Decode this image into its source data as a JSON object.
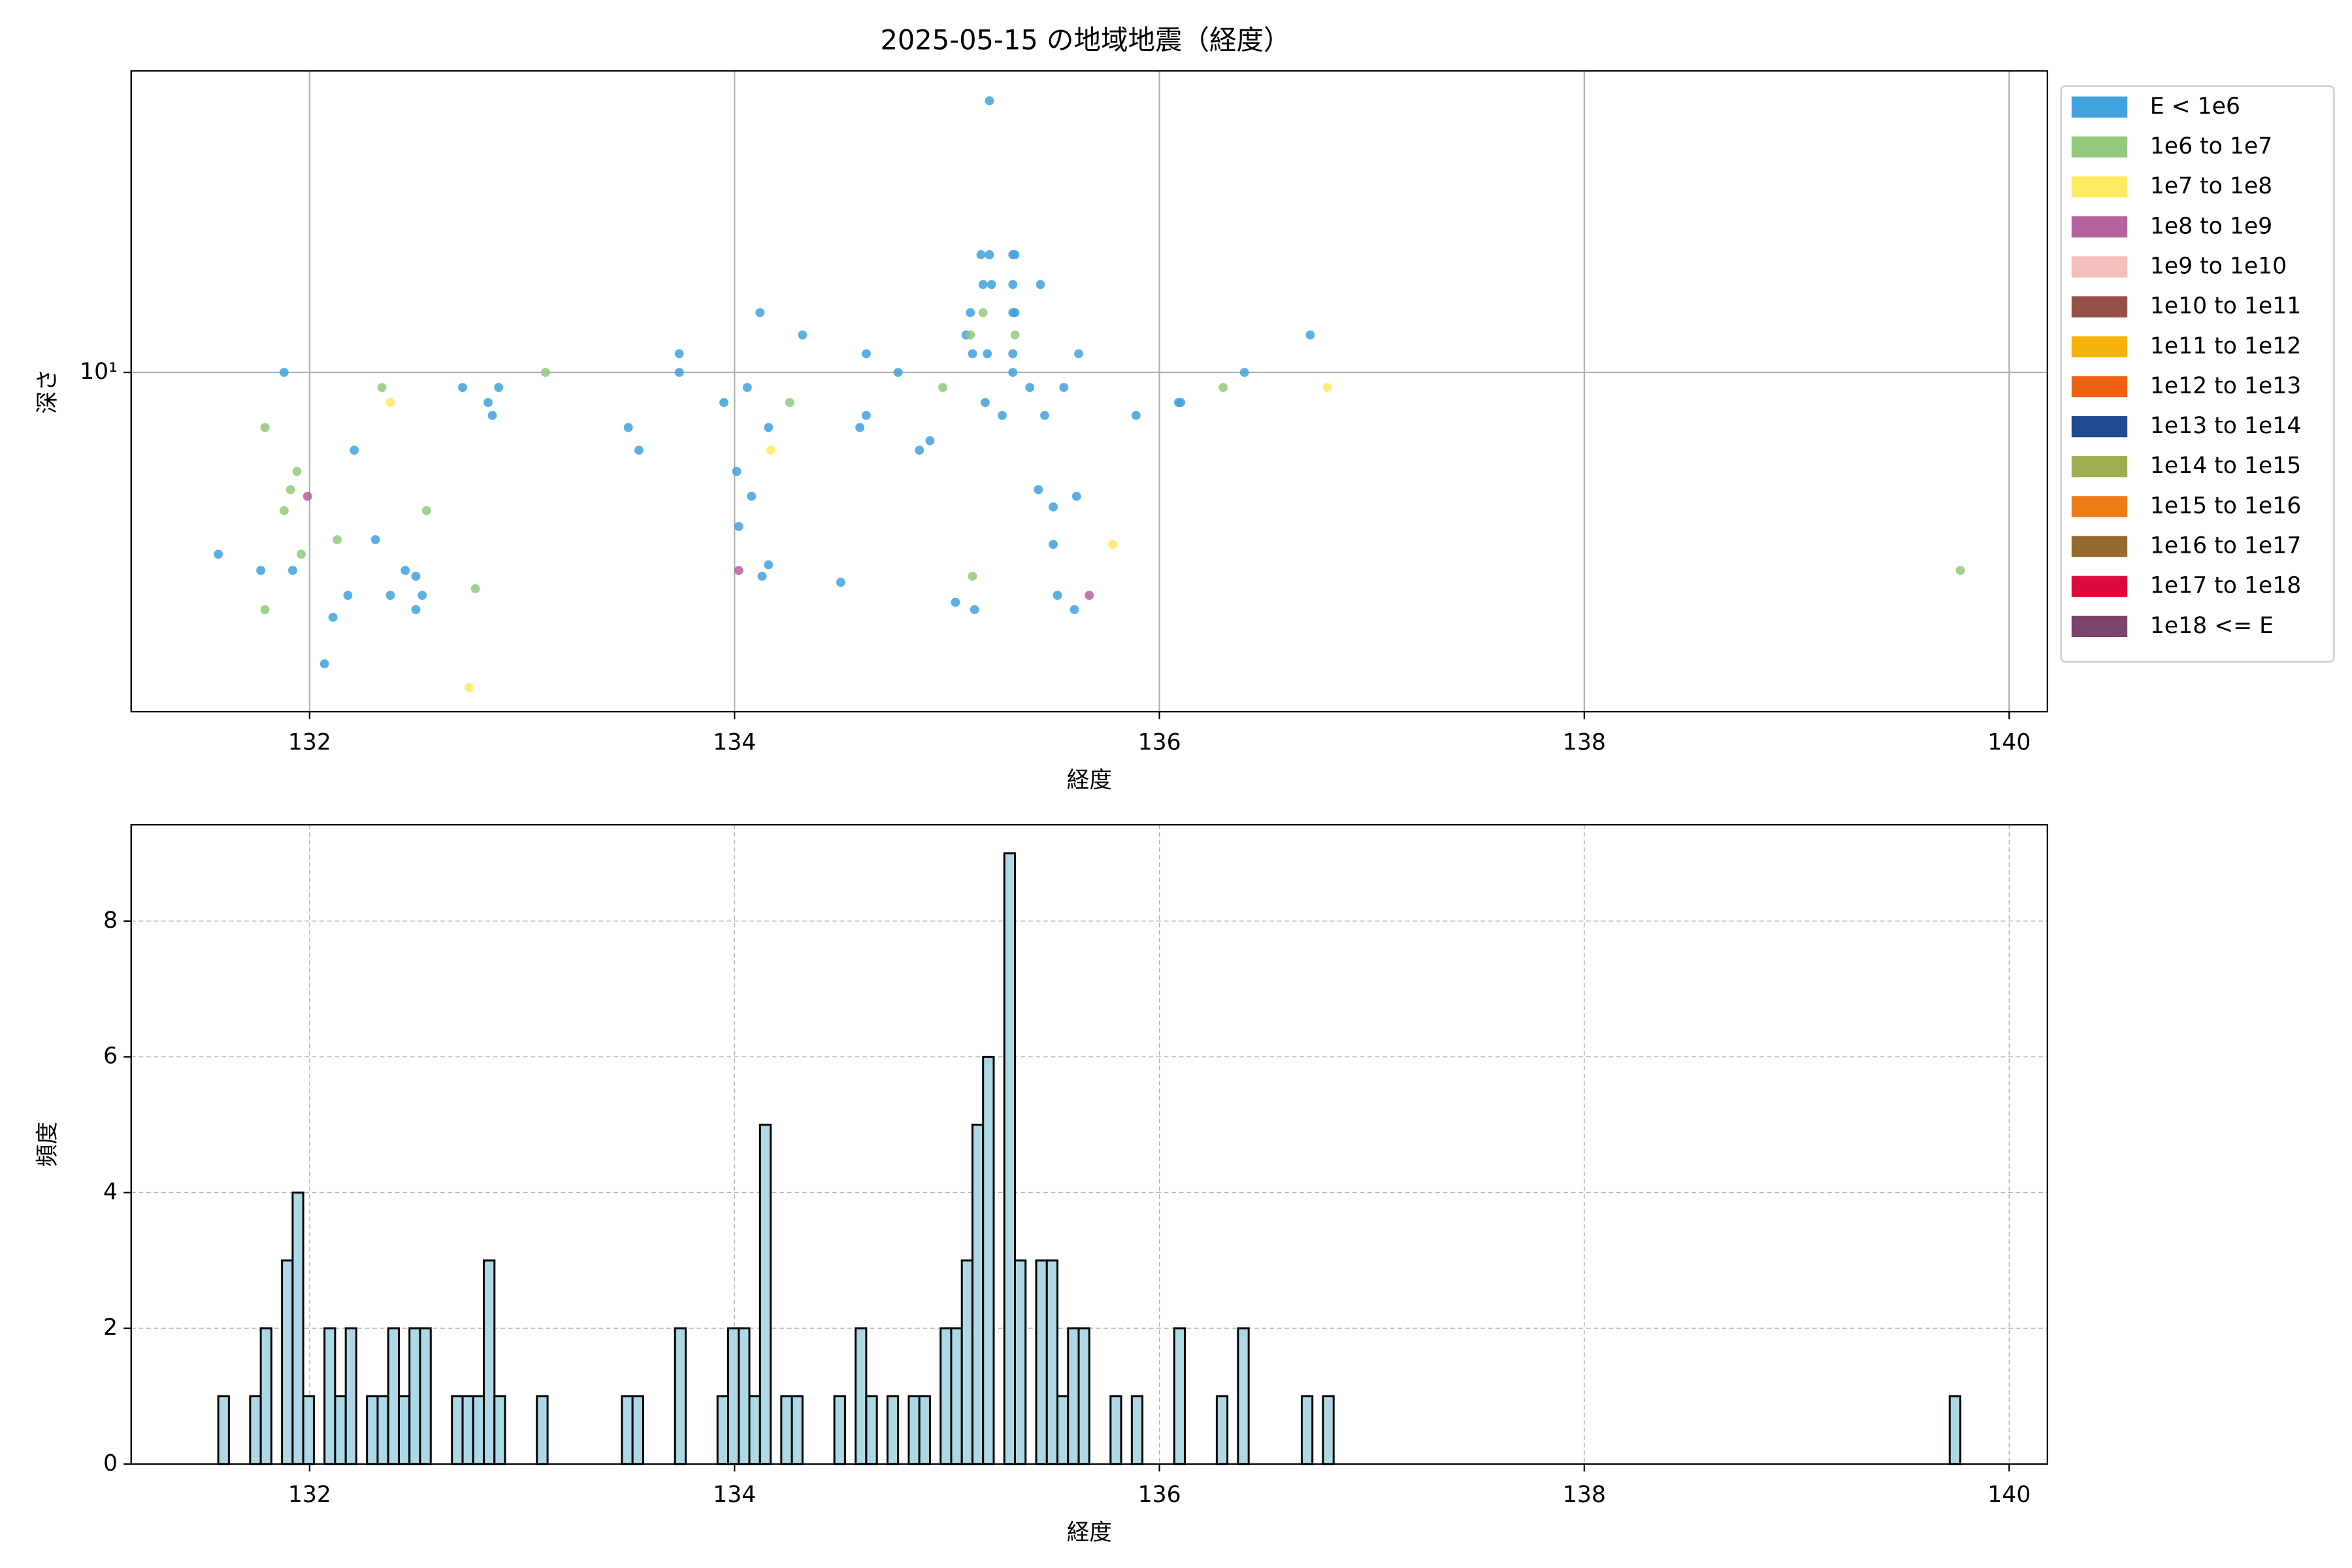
{
  "chart_data": [
    {
      "type": "scatter",
      "title": "2025-05-15 の地域地震（経度）",
      "x_label": "経度",
      "y_label": "深さ",
      "xlim": [
        131.16,
        140.18
      ],
      "xticks": [
        132,
        134,
        136,
        138,
        140
      ],
      "ylim": [
        0.93,
        82.6
      ],
      "yticks": [
        {
          "value": 10,
          "label": "10¹"
        }
      ],
      "y_log": true,
      "grid": true,
      "legend_position": "outside right",
      "series": [
        {
          "name": "E < 1e6",
          "color": "#3fa2dc",
          "x": [
            131.57,
            131.77,
            131.88,
            131.92,
            132.07,
            132.11,
            132.18,
            132.21,
            132.31,
            132.38,
            132.45,
            132.5,
            132.5,
            132.53,
            132.72,
            132.84,
            132.86,
            132.89,
            133.5,
            133.55,
            133.74,
            133.74,
            133.95,
            134.01,
            134.02,
            134.06,
            134.08,
            134.12,
            134.13,
            134.16,
            134.16,
            134.32,
            134.5,
            134.59,
            134.62,
            134.62,
            134.77,
            134.87,
            134.92,
            135.04,
            135.09,
            135.11,
            135.12,
            135.13,
            135.16,
            135.17,
            135.18,
            135.19,
            135.2,
            135.2,
            135.21,
            135.26,
            135.31,
            135.31,
            135.31,
            135.31,
            135.31,
            135.32,
            135.32,
            135.39,
            135.43,
            135.44,
            135.46,
            135.5,
            135.5,
            135.52,
            135.55,
            135.6,
            135.61,
            135.62,
            135.89,
            136.09,
            136.1,
            136.4,
            136.71
          ],
          "values": [
            2.8,
            2.5,
            10,
            2.5,
            1.3,
            1.8,
            2.1,
            5.8,
            3.1,
            2.1,
            2.5,
            2.4,
            1.9,
            2.1,
            9,
            8.1,
            7.4,
            9,
            6.8,
            5.8,
            11.4,
            10,
            8.1,
            5,
            3.4,
            9,
            4.2,
            15.2,
            2.4,
            6.8,
            2.6,
            13,
            2.3,
            6.8,
            7.4,
            11.4,
            10,
            5.8,
            6.2,
            2,
            13,
            15.2,
            11.4,
            1.9,
            22.8,
            18.5,
            8.1,
            11.4,
            22.8,
            67,
            18.5,
            7.4,
            22.8,
            18.5,
            15.2,
            11.4,
            10,
            22.8,
            15.2,
            9,
            4.4,
            18.5,
            7.4,
            3.9,
            3,
            2.1,
            9,
            1.9,
            4.2,
            11.4,
            7.4,
            8.1,
            8.1,
            10,
            13
          ]
        },
        {
          "name": "1e6 to 1e7",
          "color": "#92c97a",
          "x": [
            131.79,
            131.79,
            131.88,
            131.91,
            131.94,
            131.96,
            132.13,
            132.34,
            132.55,
            132.78,
            133.11,
            134.26,
            134.98,
            135.11,
            135.12,
            135.17,
            135.32,
            136.3,
            139.77
          ],
          "values": [
            6.8,
            1.9,
            3.8,
            4.4,
            5,
            2.8,
            3.1,
            9,
            3.8,
            2.2,
            10,
            8.1,
            9,
            13,
            2.4,
            15.2,
            13,
            9,
            2.5
          ]
        },
        {
          "name": "1e7 to 1e8",
          "color": "#fdeb5f",
          "x": [
            132.38,
            132.75,
            134.17,
            135.78,
            136.79
          ],
          "values": [
            8.1,
            1.1,
            5.8,
            3,
            9
          ]
        },
        {
          "name": "1e8 to 1e9",
          "color": "#b5629f",
          "x": [
            131.99,
            134.02,
            135.67
          ],
          "values": [
            4.2,
            2.5,
            2.1
          ]
        },
        {
          "name": "1e9 to 1e10",
          "color": "#f4bfba",
          "x": [],
          "values": []
        },
        {
          "name": "1e10 to 1e11",
          "color": "#955048",
          "x": [],
          "values": []
        },
        {
          "name": "1e11 to 1e12",
          "color": "#f4b30b",
          "x": [],
          "values": []
        },
        {
          "name": "1e12 to 1e13",
          "color": "#ee6313",
          "x": [],
          "values": []
        },
        {
          "name": "1e13 to 1e14",
          "color": "#1f4b91",
          "x": [],
          "values": []
        },
        {
          "name": "1e14 to 1e15",
          "color": "#9ead4f",
          "x": [],
          "values": []
        },
        {
          "name": "1e15 to 1e16",
          "color": "#ed7d18",
          "x": [],
          "values": []
        },
        {
          "name": "1e16 to 1e17",
          "color": "#946a2d",
          "x": [],
          "values": []
        },
        {
          "name": "1e17 to 1e18",
          "color": "#dc0b3c",
          "x": [],
          "values": []
        },
        {
          "name": "1e18 <= E",
          "color": "#7a446c",
          "x": [],
          "values": []
        }
      ]
    },
    {
      "type": "histogram",
      "x_label": "経度",
      "y_label": "頻度",
      "color": "#add8e6",
      "edge_color": "#000000",
      "xlim": [
        131.16,
        140.18
      ],
      "xticks": [
        132,
        134,
        136,
        138,
        140
      ],
      "ylim": [
        0,
        9.42
      ],
      "yticks": [
        0,
        2,
        4,
        6,
        8
      ],
      "grid": true,
      "bins": [
        131.57,
        131.62,
        131.67,
        131.72,
        131.77,
        131.82,
        131.87,
        131.92,
        131.97,
        132.02,
        132.07,
        132.12,
        132.17,
        132.22,
        132.27,
        132.32,
        132.37,
        132.42,
        132.47,
        132.52,
        132.57,
        132.62,
        132.67,
        132.72,
        132.77,
        132.82,
        132.87,
        132.92,
        132.97,
        133.02,
        133.07,
        133.12,
        133.17,
        133.22,
        133.27,
        133.32,
        133.37,
        133.42,
        133.47,
        133.52,
        133.57,
        133.62,
        133.67,
        133.72,
        133.77,
        133.82,
        133.87,
        133.92,
        133.97,
        134.02,
        134.07,
        134.12,
        134.17,
        134.22,
        134.27,
        134.32,
        134.37,
        134.42,
        134.47,
        134.52,
        134.57,
        134.62,
        134.67,
        134.72,
        134.77,
        134.82,
        134.87,
        134.92,
        134.97,
        135.02,
        135.07,
        135.12,
        135.17,
        135.22,
        135.27,
        135.32,
        135.37,
        135.42,
        135.47,
        135.52,
        135.57,
        135.62,
        135.67,
        135.72,
        135.77,
        135.82,
        135.87,
        135.92,
        135.97,
        136.02,
        136.07,
        136.12,
        136.17,
        136.22,
        136.27,
        136.32,
        136.37,
        136.42,
        136.47,
        136.52,
        136.57,
        136.62,
        136.67,
        136.72,
        136.77,
        136.82,
        136.87,
        136.92,
        136.97,
        137.02,
        137.07,
        137.12,
        137.17,
        137.22,
        137.27,
        137.32,
        137.37,
        137.42,
        137.47,
        137.52,
        137.57,
        137.62,
        137.67,
        137.72,
        137.77,
        137.82,
        137.87,
        137.92,
        137.97,
        138.02,
        138.07,
        138.12,
        138.17,
        138.22,
        138.27,
        138.32,
        138.37,
        138.42,
        138.47,
        138.52,
        138.57,
        138.62,
        138.67,
        138.72,
        138.77,
        138.82,
        138.87,
        138.92,
        138.97,
        139.02,
        139.07,
        139.12,
        139.17,
        139.22,
        139.27,
        139.32,
        139.37,
        139.42,
        139.47,
        139.52,
        139.57,
        139.62,
        139.67,
        139.72,
        139.77
      ],
      "values": [
        1,
        0,
        0,
        1,
        2,
        0,
        3,
        4,
        1,
        0,
        2,
        1,
        2,
        0,
        1,
        1,
        2,
        1,
        2,
        2,
        0,
        0,
        1,
        1,
        1,
        3,
        1,
        0,
        0,
        0,
        1,
        0,
        0,
        0,
        0,
        0,
        0,
        0,
        1,
        1,
        0,
        0,
        0,
        2,
        0,
        0,
        0,
        1,
        2,
        2,
        1,
        5,
        0,
        1,
        1,
        0,
        0,
        0,
        1,
        0,
        2,
        1,
        0,
        1,
        0,
        1,
        1,
        0,
        2,
        2,
        3,
        5,
        6,
        0,
        9,
        3,
        0,
        3,
        3,
        1,
        2,
        2,
        0,
        0,
        1,
        0,
        1,
        0,
        0,
        0,
        2,
        0,
        0,
        0,
        1,
        0,
        2,
        0,
        0,
        0,
        0,
        0,
        1,
        0,
        1,
        0,
        0,
        0,
        0,
        0,
        0,
        0,
        0,
        0,
        0,
        0,
        0,
        0,
        0,
        0,
        0,
        0,
        0,
        0,
        0,
        0,
        0,
        0,
        0,
        0,
        0,
        0,
        0,
        0,
        0,
        0,
        0,
        0,
        0,
        0,
        0,
        0,
        0,
        0,
        0,
        0,
        0,
        0,
        0,
        0,
        0,
        0,
        0,
        0,
        0,
        0,
        0,
        0,
        0,
        0,
        0,
        0,
        0,
        1
      ]
    }
  ]
}
